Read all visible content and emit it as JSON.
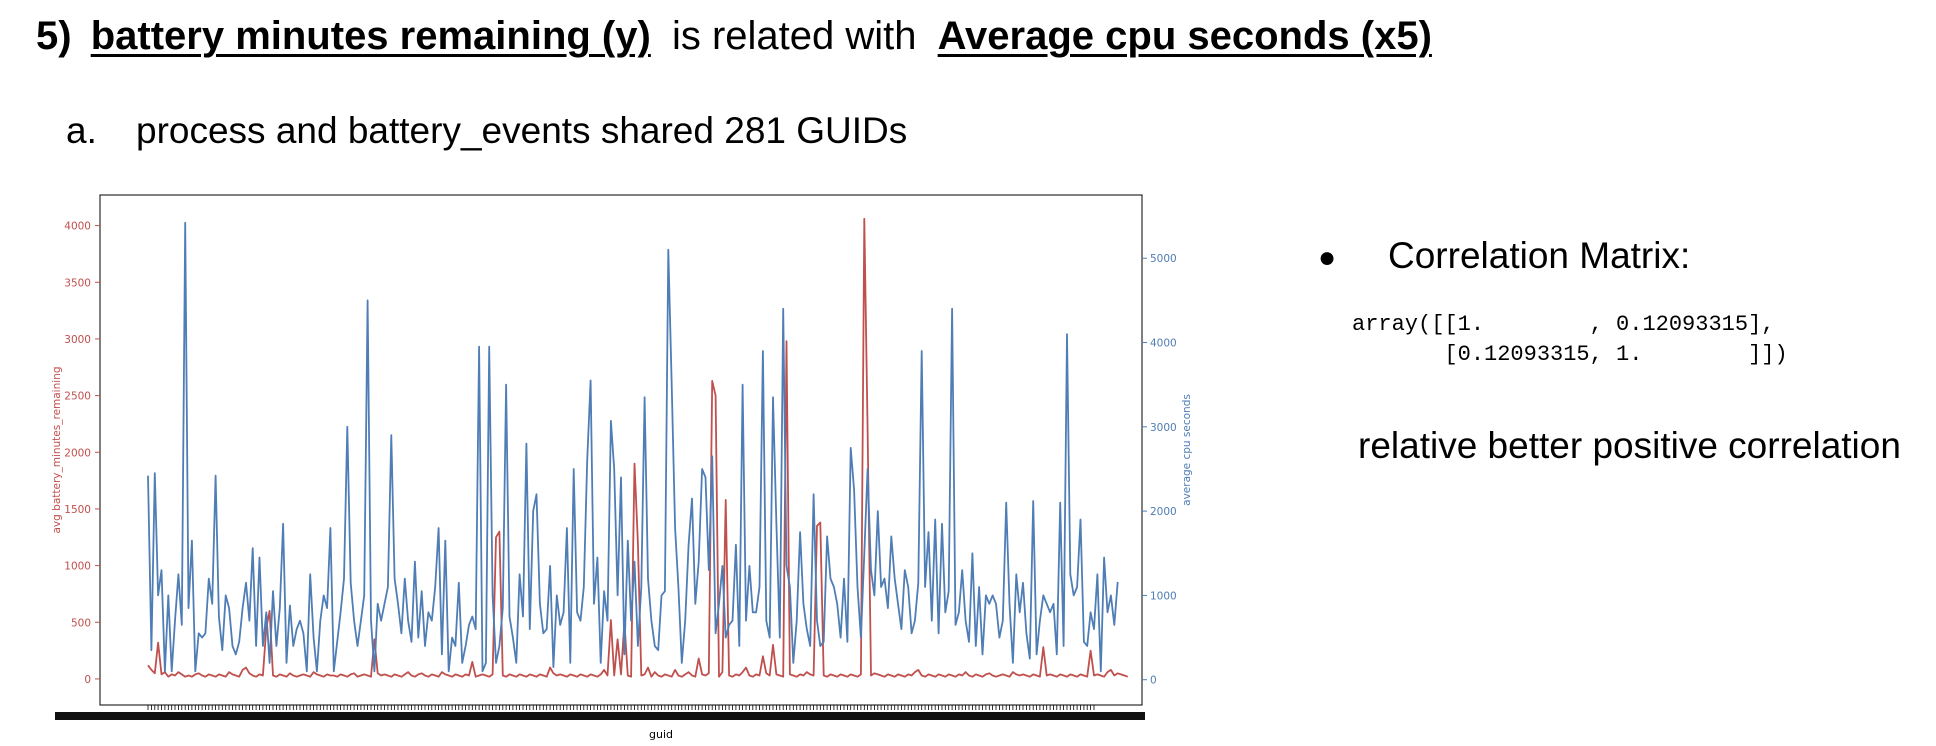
{
  "slide": {
    "number_label": "5)",
    "y_label_text": "battery minutes remaining (y)",
    "connector_text": "is related with",
    "x_label_text": "Average cpu  seconds (x5)",
    "sub_marker": "a.",
    "sub_text": "process and battery_events shared 281 GUIDs",
    "bullet_symbol": "●",
    "bullet_text": "Correlation Matrix:",
    "matrix_line1": "array([[1.        , 0.12093315],",
    "matrix_line2": "       [0.12093315, 1.        ]])",
    "conclusion": "relative better positive correlation"
  },
  "colors": {
    "battery_series": "#c0504d",
    "cpu_series": "#4f7db5",
    "axis": "#000000"
  },
  "chart_data": {
    "type": "line",
    "xlabel": "guid",
    "ylabel_left": "avg battery_minutes_remaining",
    "ylabel_right": "average cpu seconds",
    "ylim_left": [
      -230,
      4270
    ],
    "ylim_right": [
      -300,
      5750
    ],
    "yticks_left": [
      0,
      500,
      1000,
      1500,
      2000,
      2500,
      3000,
      3500,
      4000
    ],
    "yticks_right": [
      0,
      1000,
      2000,
      3000,
      4000,
      5000
    ],
    "n_points": 281,
    "series": [
      {
        "name": "avg battery_minutes_remaining",
        "axis": "left",
        "values": [
          120,
          80,
          50,
          320,
          40,
          60,
          20,
          40,
          30,
          60,
          40,
          20,
          30,
          20,
          40,
          50,
          30,
          20,
          40,
          30,
          20,
          40,
          30,
          20,
          60,
          40,
          30,
          20,
          80,
          100,
          50,
          30,
          20,
          40,
          30,
          450,
          600,
          30,
          20,
          40,
          30,
          20,
          50,
          30,
          20,
          30,
          40,
          30,
          20,
          60,
          40,
          30,
          20,
          40,
          30,
          30,
          20,
          40,
          30,
          20,
          40,
          50,
          20,
          30,
          40,
          30,
          20,
          350,
          50,
          30,
          40,
          30,
          20,
          40,
          30,
          20,
          40,
          60,
          30,
          20,
          40,
          50,
          30,
          20,
          40,
          30,
          20,
          60,
          40,
          30,
          20,
          40,
          30,
          20,
          40,
          30,
          150,
          20,
          30,
          40,
          30,
          20,
          40,
          1250,
          1300,
          30,
          20,
          40,
          30,
          20,
          40,
          30,
          20,
          40,
          30,
          20,
          40,
          30,
          20,
          100,
          50,
          30,
          40,
          30,
          20,
          40,
          30,
          20,
          40,
          30,
          20,
          40,
          30,
          20,
          40,
          80,
          30,
          520,
          30,
          350,
          40,
          500,
          30,
          20,
          1900,
          1200,
          30,
          40,
          100,
          20,
          60,
          30,
          20,
          40,
          30,
          20,
          80,
          30,
          20,
          40,
          60,
          30,
          20,
          180,
          40,
          30,
          50,
          2630,
          2500,
          20,
          60,
          1580,
          30,
          20,
          40,
          30,
          60,
          100,
          30,
          20,
          40,
          30,
          200,
          50,
          30,
          300,
          40,
          30,
          20,
          2980,
          40,
          30,
          20,
          40,
          30,
          60,
          40,
          30,
          1350,
          1380,
          30,
          20,
          40,
          30,
          20,
          40,
          30,
          20,
          40,
          30,
          20,
          40,
          4060,
          2200,
          30,
          50,
          40,
          30,
          20,
          40,
          30,
          20,
          40,
          30,
          20,
          40,
          30,
          60,
          80,
          30,
          20,
          40,
          30,
          20,
          40,
          30,
          20,
          40,
          30,
          20,
          40,
          30,
          60,
          30,
          20,
          40,
          30,
          20,
          40,
          50,
          30,
          20,
          30,
          40,
          30,
          20,
          60,
          40,
          30,
          40,
          30,
          20,
          40,
          30,
          20,
          280,
          30,
          40,
          30,
          20,
          40,
          30,
          20,
          40,
          30,
          20,
          40,
          30,
          20,
          250,
          30,
          40,
          30,
          20,
          60,
          80,
          30,
          50,
          40,
          30,
          20
        ]
      },
      {
        "name": "average cpu seconds",
        "axis": "right",
        "values": [
          2420,
          350,
          2450,
          1000,
          1300,
          100,
          1000,
          100,
          700,
          1250,
          650,
          5420,
          850,
          1650,
          100,
          550,
          500,
          550,
          1200,
          900,
          2420,
          750,
          350,
          1000,
          850,
          400,
          300,
          450,
          850,
          1150,
          700,
          1560,
          400,
          1450,
          400,
          800,
          200,
          1050,
          400,
          850,
          1850,
          200,
          880,
          400,
          600,
          700,
          550,
          100,
          1250,
          500,
          100,
          700,
          1000,
          850,
          1800,
          100,
          450,
          800,
          1200,
          3000,
          1150,
          700,
          400,
          700,
          1000,
          4500,
          700,
          100,
          900,
          700,
          900,
          1100,
          2900,
          1200,
          900,
          550,
          1200,
          700,
          450,
          1400,
          500,
          1050,
          400,
          800,
          700,
          1100,
          1800,
          300,
          1650,
          100,
          500,
          400,
          1150,
          200,
          400,
          650,
          750,
          600,
          3950,
          100,
          200,
          3950,
          1000,
          200,
          400,
          850,
          3500,
          750,
          500,
          200,
          1250,
          750,
          2800,
          600,
          2000,
          2200,
          900,
          550,
          600,
          1350,
          150,
          1000,
          650,
          800,
          1800,
          200,
          2500,
          800,
          700,
          1100,
          2600,
          3550,
          900,
          1450,
          200,
          1050,
          700,
          3070,
          2500,
          1000,
          2400,
          300,
          1650,
          700,
          1400,
          400,
          1100,
          3350,
          1200,
          700,
          400,
          350,
          1000,
          1050,
          5100,
          3500,
          1800,
          1100,
          200,
          700,
          1600,
          2150,
          900,
          1400,
          2500,
          2400,
          1300,
          2650,
          550,
          900,
          1350,
          500,
          650,
          700,
          1600,
          400,
          3500,
          700,
          1350,
          800,
          800,
          1100,
          3900,
          700,
          500,
          3350,
          1850,
          500,
          4400,
          1350,
          1100,
          200,
          700,
          1750,
          900,
          600,
          400,
          2200,
          700,
          400,
          450,
          1700,
          1200,
          1100,
          900,
          500,
          1200,
          450,
          2750,
          2250,
          1100,
          500,
          1500,
          2500,
          1300,
          1000,
          2000,
          1100,
          1200,
          850,
          1700,
          1200,
          900,
          600,
          1300,
          1100,
          550,
          700,
          1150,
          3900,
          1100,
          1750,
          700,
          1900,
          550,
          1850,
          800,
          1050,
          4400,
          650,
          800,
          1300,
          700,
          450,
          1500,
          400,
          1100,
          300,
          1000,
          900,
          1000,
          900,
          500,
          700,
          2100,
          900,
          200,
          1250,
          800,
          1150,
          550,
          250,
          2120,
          300,
          700,
          1000,
          900,
          800,
          900,
          300,
          2100,
          400,
          4100,
          1250,
          1000,
          1100,
          1900,
          450,
          400,
          800,
          600,
          1250,
          100,
          1450,
          800,
          1000,
          650,
          1160
        ]
      }
    ]
  }
}
